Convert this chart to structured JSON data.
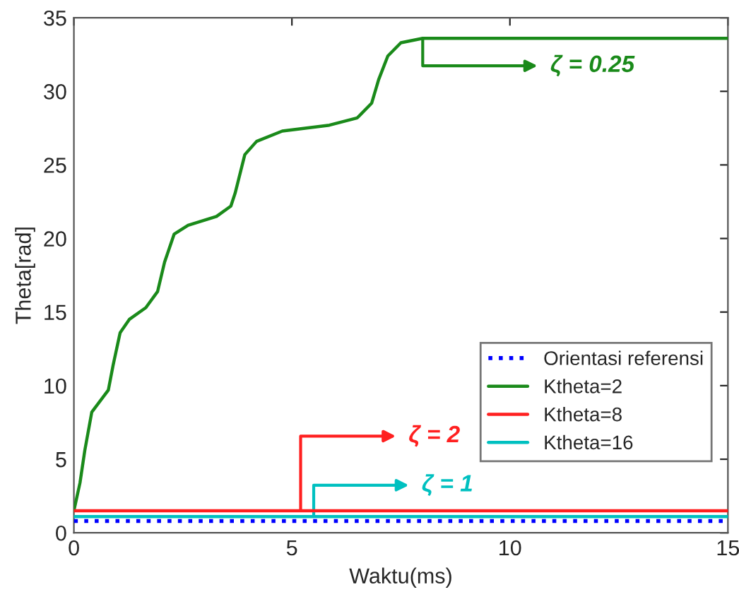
{
  "chart_data": {
    "type": "line",
    "xlabel": "Waktu(ms)",
    "ylabel": "Theta[rad]",
    "xlim": [
      0,
      15
    ],
    "ylim": [
      0,
      35
    ],
    "xticks": [
      0,
      5,
      10,
      15
    ],
    "yticks": [
      0,
      5,
      10,
      15,
      20,
      25,
      30,
      35
    ],
    "grid": false,
    "legend": "bottom right",
    "series": [
      {
        "name": "Orientasi referensi",
        "color": "#0000ff",
        "line_style": "dotted",
        "x": [
          0,
          15
        ],
        "values": [
          0.8,
          0.8
        ]
      },
      {
        "name": "Ktheta=2",
        "color": "#1a8a1a",
        "line_style": "solid",
        "x": [
          0,
          0.14,
          0.25,
          0.41,
          0.79,
          0.9,
          1.06,
          1.27,
          1.65,
          1.92,
          2.08,
          2.3,
          2.62,
          3.27,
          3.6,
          3.7,
          3.92,
          4.19,
          4.78,
          5.86,
          6.5,
          6.83,
          6.99,
          7.2,
          7.5,
          8,
          15
        ],
        "values": [
          1.5,
          3.4,
          5.6,
          8.2,
          9.7,
          11.4,
          13.6,
          14.5,
          15.3,
          16.4,
          18.4,
          20.3,
          20.9,
          21.5,
          22.2,
          23.1,
          25.7,
          26.6,
          27.3,
          27.7,
          28.2,
          29.2,
          30.8,
          32.4,
          33.3,
          33.6,
          33.6
        ]
      },
      {
        "name": "Ktheta=8",
        "color": "#ff2020",
        "line_style": "solid",
        "x": [
          0,
          15
        ],
        "values": [
          1.5,
          1.5
        ]
      },
      {
        "name": "Ktheta=16",
        "color": "#00c0c0",
        "line_style": "solid",
        "x": [
          0,
          15
        ],
        "values": [
          1.1,
          1.1
        ]
      }
    ],
    "annotations": [
      {
        "text": "ζ = 0.25",
        "x": 8,
        "y": 33.6
      },
      {
        "text": "ζ = 2",
        "x": 5.2,
        "y": 1.5
      },
      {
        "text": "ζ = 1",
        "x": 5.5,
        "y": 1.1
      }
    ]
  }
}
